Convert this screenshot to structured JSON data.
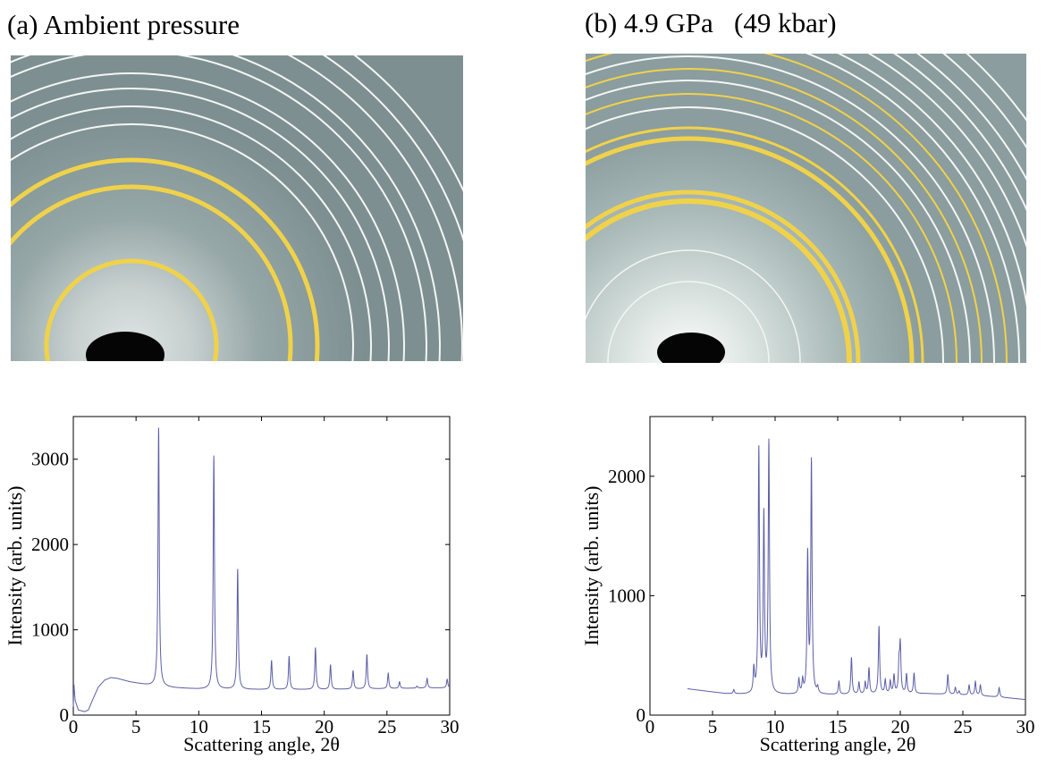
{
  "panels": [
    {
      "id": "a",
      "title": "(a) Ambient pressure"
    },
    {
      "id": "b",
      "title": "(b) 4.9 GPa   (49 kbar)"
    }
  ],
  "colors": {
    "line": "#5b5ea6",
    "ring_yellow": "#f0d24a",
    "ring_white": "#f4f6f3",
    "film": "#93a4a4"
  },
  "chart_data": [
    {
      "type": "line",
      "title": "(a) Ambient pressure",
      "xlabel": "Scattering angle, 2θ",
      "ylabel": "Intensity (arb. units)",
      "xlim": [
        0,
        30
      ],
      "ylim": [
        0,
        3500
      ],
      "xticks": [
        0,
        5,
        10,
        15,
        20,
        25,
        30
      ],
      "yticks": [
        0,
        1000,
        2000,
        3000
      ],
      "grid": false,
      "baseline": [
        [
          0,
          100
        ],
        [
          0.05,
          360
        ],
        [
          0.15,
          170
        ],
        [
          0.4,
          60
        ],
        [
          0.9,
          40
        ],
        [
          1.2,
          60
        ],
        [
          1.6,
          200
        ],
        [
          2.0,
          330
        ],
        [
          2.5,
          410
        ],
        [
          3.0,
          440
        ],
        [
          3.5,
          430
        ],
        [
          4.5,
          390
        ],
        [
          6,
          350
        ],
        [
          8,
          320
        ],
        [
          10,
          305
        ],
        [
          14,
          300
        ],
        [
          20,
          300
        ],
        [
          25,
          310
        ],
        [
          28,
          318
        ],
        [
          30,
          320
        ]
      ],
      "peaks": [
        [
          6.8,
          3370
        ],
        [
          11.2,
          3040
        ],
        [
          13.1,
          1710
        ],
        [
          15.8,
          640
        ],
        [
          17.2,
          690
        ],
        [
          19.3,
          790
        ],
        [
          20.5,
          590
        ],
        [
          22.3,
          520
        ],
        [
          23.4,
          710
        ],
        [
          25.1,
          490
        ],
        [
          26.0,
          390
        ],
        [
          27.4,
          340
        ],
        [
          28.2,
          430
        ],
        [
          29.8,
          420
        ]
      ]
    },
    {
      "type": "line",
      "xlabel": "Scattering angle, 2θ",
      "ylabel": "Intensity (arb. units)",
      "xlim": [
        0,
        30
      ],
      "ylim": [
        0,
        2500
      ],
      "xticks": [
        0,
        5,
        10,
        15,
        20,
        25,
        30
      ],
      "yticks": [
        0,
        1000,
        2000
      ],
      "grid": false,
      "baseline": [
        [
          3.0,
          220
        ],
        [
          4.5,
          200
        ],
        [
          6,
          180
        ],
        [
          8,
          170
        ],
        [
          10,
          170
        ],
        [
          14,
          170
        ],
        [
          18,
          175
        ],
        [
          22,
          180
        ],
        [
          26,
          165
        ],
        [
          28,
          150
        ],
        [
          30,
          130
        ]
      ],
      "peaks": [
        [
          6.7,
          210
        ],
        [
          8.3,
          370
        ],
        [
          8.7,
          2210
        ],
        [
          9.1,
          1640
        ],
        [
          9.5,
          2270
        ],
        [
          11.9,
          290
        ],
        [
          12.2,
          280
        ],
        [
          12.6,
          1320
        ],
        [
          12.9,
          2110
        ],
        [
          13.4,
          220
        ],
        [
          15.1,
          280
        ],
        [
          16.1,
          480
        ],
        [
          16.7,
          270
        ],
        [
          17.2,
          270
        ],
        [
          17.5,
          390
        ],
        [
          18.3,
          740
        ],
        [
          18.8,
          290
        ],
        [
          19.2,
          280
        ],
        [
          19.5,
          330
        ],
        [
          19.9,
          410
        ],
        [
          20.0,
          570
        ],
        [
          20.5,
          340
        ],
        [
          21.1,
          350
        ],
        [
          23.8,
          340
        ],
        [
          24.4,
          230
        ],
        [
          24.7,
          200
        ],
        [
          25.5,
          250
        ],
        [
          26.0,
          280
        ],
        [
          26.4,
          250
        ],
        [
          27.9,
          230
        ]
      ]
    }
  ]
}
